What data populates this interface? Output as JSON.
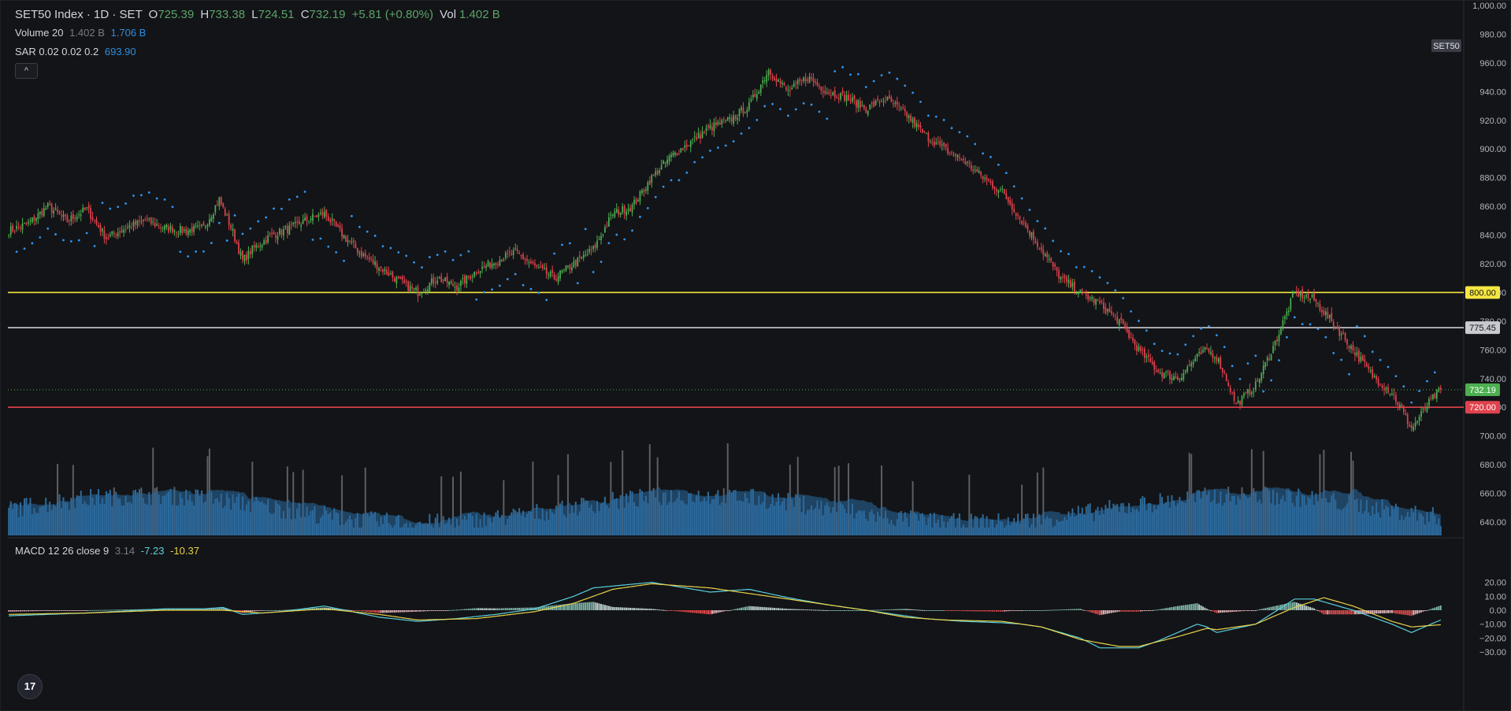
{
  "legend": {
    "symbol": "SET50 Index · 1D · SET",
    "open_label": "O",
    "open": "725.39",
    "high_label": "H",
    "high": "733.38",
    "low_label": "L",
    "low": "724.51",
    "close_label": "C",
    "close": "732.19",
    "change": "+5.81 (+0.80%)",
    "vol_label": "Vol",
    "vol": "1.402 B",
    "volume_study": "Volume 20",
    "volume_val1": "1.402 B",
    "volume_val2": "1.706 B",
    "sar_study": "SAR 0.02 0.02 0.2",
    "sar_val": "693.90",
    "collapse_glyph": "^",
    "macd_study": "MACD 12 26 close 9",
    "macd_hist": "3.14",
    "macd_line": "-7.23",
    "macd_signal": "-10.37"
  },
  "logo_text": "17",
  "colors": {
    "background": "#131417",
    "up": "#4caf50",
    "down": "#e0424d",
    "volume_up": "#2f6c9a",
    "volume_spike": "#5b5f66",
    "sar": "#2f95f3",
    "support_800": "#f5e642",
    "level_775": "#c8cad0",
    "support_720": "#e0424d",
    "macd_line": "#5ad0e0",
    "signal_line": "#e8d24a"
  },
  "chart_data": [
    {
      "type": "candlestick",
      "title": "SET50 Index · 1D · SET",
      "ylim": [
        630,
        1000
      ],
      "y_ticks": [
        640,
        660,
        680,
        700,
        720,
        740,
        760,
        780,
        800,
        820,
        840,
        860,
        880,
        900,
        920,
        940,
        960,
        980,
        1000
      ],
      "y_tick_labels": [
        "640.00",
        "660.00",
        "680.00",
        "700.00",
        "720.00",
        "740.00",
        "760.00",
        "780.00",
        "800.00",
        "820.00",
        "840.00",
        "860.00",
        "880.00",
        "900.00",
        "920.00",
        "940.00",
        "960.00",
        "980.00",
        "1,000.00"
      ],
      "axis_side": "right",
      "symbol_badge": "SET50",
      "horizontal_levels": [
        {
          "value": 800,
          "label": "800.00",
          "color": "#f5e642",
          "text_color": "#131417"
        },
        {
          "value": 775.45,
          "label": "775.45",
          "color": "#c8cad0",
          "text_color": "#131417"
        },
        {
          "value": 732.19,
          "label": "732.19",
          "color": "#4caf50",
          "text_color": "#ffffff",
          "dotted": true
        },
        {
          "value": 720,
          "label": "720.00",
          "color": "#e0424d",
          "text_color": "#ffffff"
        }
      ],
      "close_path": [
        [
          0,
          843
        ],
        [
          10,
          848
        ],
        [
          20,
          860
        ],
        [
          30,
          850
        ],
        [
          40,
          858
        ],
        [
          50,
          838
        ],
        [
          60,
          845
        ],
        [
          70,
          850
        ],
        [
          80,
          845
        ],
        [
          90,
          843
        ],
        [
          100,
          845
        ],
        [
          108,
          865
        ],
        [
          115,
          842
        ],
        [
          120,
          822
        ],
        [
          125,
          830
        ],
        [
          135,
          840
        ],
        [
          145,
          845
        ],
        [
          155,
          852
        ],
        [
          162,
          855
        ],
        [
          170,
          842
        ],
        [
          180,
          828
        ],
        [
          190,
          818
        ],
        [
          200,
          808
        ],
        [
          210,
          800
        ],
        [
          220,
          810
        ],
        [
          230,
          804
        ],
        [
          240,
          815
        ],
        [
          250,
          822
        ],
        [
          260,
          828
        ],
        [
          270,
          818
        ],
        [
          280,
          810
        ],
        [
          290,
          820
        ],
        [
          300,
          830
        ],
        [
          310,
          855
        ],
        [
          320,
          860
        ],
        [
          330,
          880
        ],
        [
          340,
          895
        ],
        [
          350,
          905
        ],
        [
          360,
          915
        ],
        [
          370,
          920
        ],
        [
          380,
          930
        ],
        [
          390,
          955
        ],
        [
          400,
          940
        ],
        [
          410,
          950
        ],
        [
          420,
          940
        ],
        [
          430,
          936
        ],
        [
          440,
          928
        ],
        [
          450,
          935
        ],
        [
          460,
          925
        ],
        [
          470,
          910
        ],
        [
          480,
          900
        ],
        [
          490,
          892
        ],
        [
          500,
          880
        ],
        [
          510,
          870
        ],
        [
          520,
          850
        ],
        [
          530,
          830
        ],
        [
          540,
          810
        ],
        [
          550,
          800
        ],
        [
          560,
          792
        ],
        [
          570,
          780
        ],
        [
          580,
          760
        ],
        [
          590,
          745
        ],
        [
          600,
          740
        ],
        [
          610,
          755
        ],
        [
          615,
          760
        ],
        [
          620,
          755
        ],
        [
          625,
          740
        ],
        [
          630,
          722
        ],
        [
          640,
          735
        ],
        [
          650,
          765
        ],
        [
          660,
          800
        ],
        [
          670,
          795
        ],
        [
          680,
          778
        ],
        [
          690,
          760
        ],
        [
          700,
          742
        ],
        [
          710,
          730
        ],
        [
          715,
          718
        ],
        [
          720,
          705
        ],
        [
          730,
          725
        ],
        [
          735,
          732.19
        ]
      ],
      "n_bars": 736,
      "last_close": 732.19
    },
    {
      "type": "bar",
      "series": "Volume 20",
      "last_value": "1.402 B",
      "ma_value": "1.706 B"
    },
    {
      "type": "scatter",
      "series": "SAR 0.02 0.02 0.2",
      "last_value": 693.9
    },
    {
      "type": "line",
      "title": "MACD 12 26 close 9",
      "ylim": [
        -33,
        23
      ],
      "y_ticks": [
        20,
        10,
        0,
        -10,
        -20,
        -30
      ],
      "y_tick_labels": [
        "20.00",
        "10.00",
        "0.00",
        "−10.00",
        "−20.00",
        "−30.00"
      ],
      "macd_path": [
        [
          0,
          -4
        ],
        [
          40,
          -2
        ],
        [
          80,
          1
        ],
        [
          100,
          1
        ],
        [
          110,
          2
        ],
        [
          120,
          -3
        ],
        [
          140,
          -1
        ],
        [
          162,
          3
        ],
        [
          190,
          -5
        ],
        [
          210,
          -8
        ],
        [
          230,
          -6
        ],
        [
          250,
          -3
        ],
        [
          270,
          1
        ],
        [
          290,
          10
        ],
        [
          300,
          16
        ],
        [
          330,
          20
        ],
        [
          360,
          13
        ],
        [
          380,
          15
        ],
        [
          400,
          9
        ],
        [
          420,
          4
        ],
        [
          440,
          0
        ],
        [
          460,
          -4
        ],
        [
          470,
          -6
        ],
        [
          490,
          -8
        ],
        [
          510,
          -9
        ],
        [
          520,
          -10
        ],
        [
          530,
          -12
        ],
        [
          550,
          -20
        ],
        [
          560,
          -27
        ],
        [
          580,
          -27
        ],
        [
          590,
          -22
        ],
        [
          610,
          -10
        ],
        [
          615,
          -12
        ],
        [
          620,
          -16
        ],
        [
          640,
          -10
        ],
        [
          660,
          8
        ],
        [
          670,
          8
        ],
        [
          690,
          0
        ],
        [
          700,
          -5
        ],
        [
          710,
          -10
        ],
        [
          720,
          -16
        ],
        [
          735,
          -7
        ]
      ],
      "signal_path": [
        [
          0,
          -3
        ],
        [
          40,
          -2
        ],
        [
          80,
          0
        ],
        [
          110,
          0
        ],
        [
          130,
          -2
        ],
        [
          162,
          1
        ],
        [
          190,
          -3
        ],
        [
          210,
          -7
        ],
        [
          240,
          -6
        ],
        [
          270,
          -1
        ],
        [
          290,
          5
        ],
        [
          310,
          15
        ],
        [
          330,
          19
        ],
        [
          360,
          16
        ],
        [
          390,
          10
        ],
        [
          420,
          4
        ],
        [
          440,
          0
        ],
        [
          460,
          -5
        ],
        [
          480,
          -7
        ],
        [
          510,
          -8
        ],
        [
          530,
          -12
        ],
        [
          550,
          -21
        ],
        [
          570,
          -26
        ],
        [
          580,
          -26
        ],
        [
          600,
          -19
        ],
        [
          615,
          -13
        ],
        [
          620,
          -14
        ],
        [
          640,
          -10
        ],
        [
          660,
          2
        ],
        [
          675,
          9
        ],
        [
          690,
          3
        ],
        [
          710,
          -8
        ],
        [
          720,
          -12
        ],
        [
          735,
          -10.4
        ]
      ],
      "last_hist": 3.14,
      "last_macd": -7.23,
      "last_signal": -10.37
    }
  ]
}
